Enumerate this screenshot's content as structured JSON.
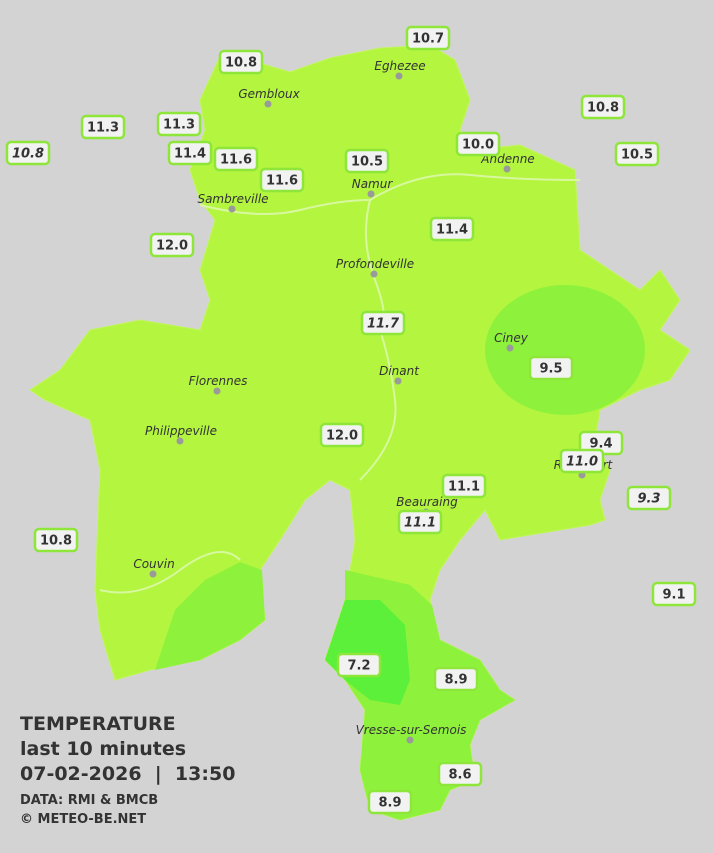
{
  "title": {
    "heading": "TEMPERATURE",
    "period": "last 10 minutes",
    "datetime": "07-02-2026  |  13:50",
    "source": "DATA: RMI & BMCB",
    "credit": "© METEO-BE.NET"
  },
  "cities": [
    "Eghezee",
    "Gembloux",
    "Andenne",
    "Namur",
    "Sambreville",
    "Profondeville",
    "Ciney",
    "Dinant",
    "Florennes",
    "Philippeville",
    "Couvin",
    "Vresse-sur-Semois",
    "Rochefort",
    "Beauraing"
  ],
  "stations": [
    {
      "label": "10.7",
      "italic": false
    },
    {
      "label": "10.8",
      "italic": false
    },
    {
      "label": "10.8",
      "italic": false
    },
    {
      "label": "11.3",
      "italic": false
    },
    {
      "label": "11.3",
      "italic": false
    },
    {
      "label": "10.8",
      "italic": true
    },
    {
      "label": "11.4",
      "italic": false
    },
    {
      "label": "11.6",
      "italic": false
    },
    {
      "label": "10.5",
      "italic": false
    },
    {
      "label": "10.0",
      "italic": false
    },
    {
      "label": "10.5",
      "italic": false
    },
    {
      "label": "11.6",
      "italic": false
    },
    {
      "label": "11.4",
      "italic": false
    },
    {
      "label": "12.0",
      "italic": false
    },
    {
      "label": "11.7",
      "italic": true
    },
    {
      "label": "9.5",
      "italic": false
    },
    {
      "label": "12.0",
      "italic": false
    },
    {
      "label": "9.4",
      "italic": false
    },
    {
      "label": "11.0",
      "italic": true
    },
    {
      "label": "9.3",
      "italic": true
    },
    {
      "label": "11.1",
      "italic": false
    },
    {
      "label": "11.1",
      "italic": true
    },
    {
      "label": "10.8",
      "italic": false
    },
    {
      "label": "9.1",
      "italic": false
    },
    {
      "label": "7.2",
      "italic": false
    },
    {
      "label": "8.9",
      "italic": false
    },
    {
      "label": "8.6",
      "italic": false
    },
    {
      "label": "8.9",
      "italic": false
    }
  ]
}
